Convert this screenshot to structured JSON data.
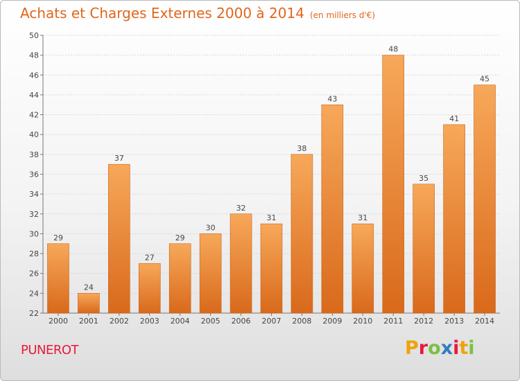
{
  "header": {
    "title": "Achats et Charges Externes 2000 à 2014",
    "subtitle": "(en milliers d'€)"
  },
  "footer": {
    "place": "PUNEROT",
    "brand": "Proxiti",
    "brand_colors": [
      "#f0a20a",
      "#e8193c",
      "#7bc142",
      "#2f7ec1",
      "#e8193c",
      "#f0a20a",
      "#7bc142"
    ]
  },
  "colors": {
    "bar_top": "#f7a85a",
    "bar_bottom": "#d9691b",
    "title": "#e0661c",
    "place": "#e8193c"
  },
  "chart_data": {
    "type": "bar",
    "categories": [
      "2000",
      "2001",
      "2002",
      "2003",
      "2004",
      "2005",
      "2006",
      "2007",
      "2008",
      "2009",
      "2010",
      "2011",
      "2012",
      "2013",
      "2014"
    ],
    "values": [
      29,
      24,
      37,
      27,
      29,
      30,
      32,
      31,
      38,
      43,
      31,
      48,
      35,
      41,
      45
    ],
    "value_labels": [
      "29",
      "24",
      "37",
      "27",
      "29",
      "30",
      "32",
      "31",
      "38",
      "43",
      "31",
      "48",
      "35",
      "41",
      "45"
    ],
    "ylim": [
      22,
      50
    ],
    "yticks": [
      22,
      24,
      26,
      28,
      30,
      32,
      34,
      36,
      38,
      40,
      42,
      44,
      46,
      48,
      50
    ],
    "ytick_labels": [
      "22",
      "24",
      "26",
      "28",
      "30",
      "32",
      "34",
      "36",
      "38",
      "40",
      "42",
      "44",
      "46",
      "48",
      "50"
    ],
    "grid": true
  }
}
